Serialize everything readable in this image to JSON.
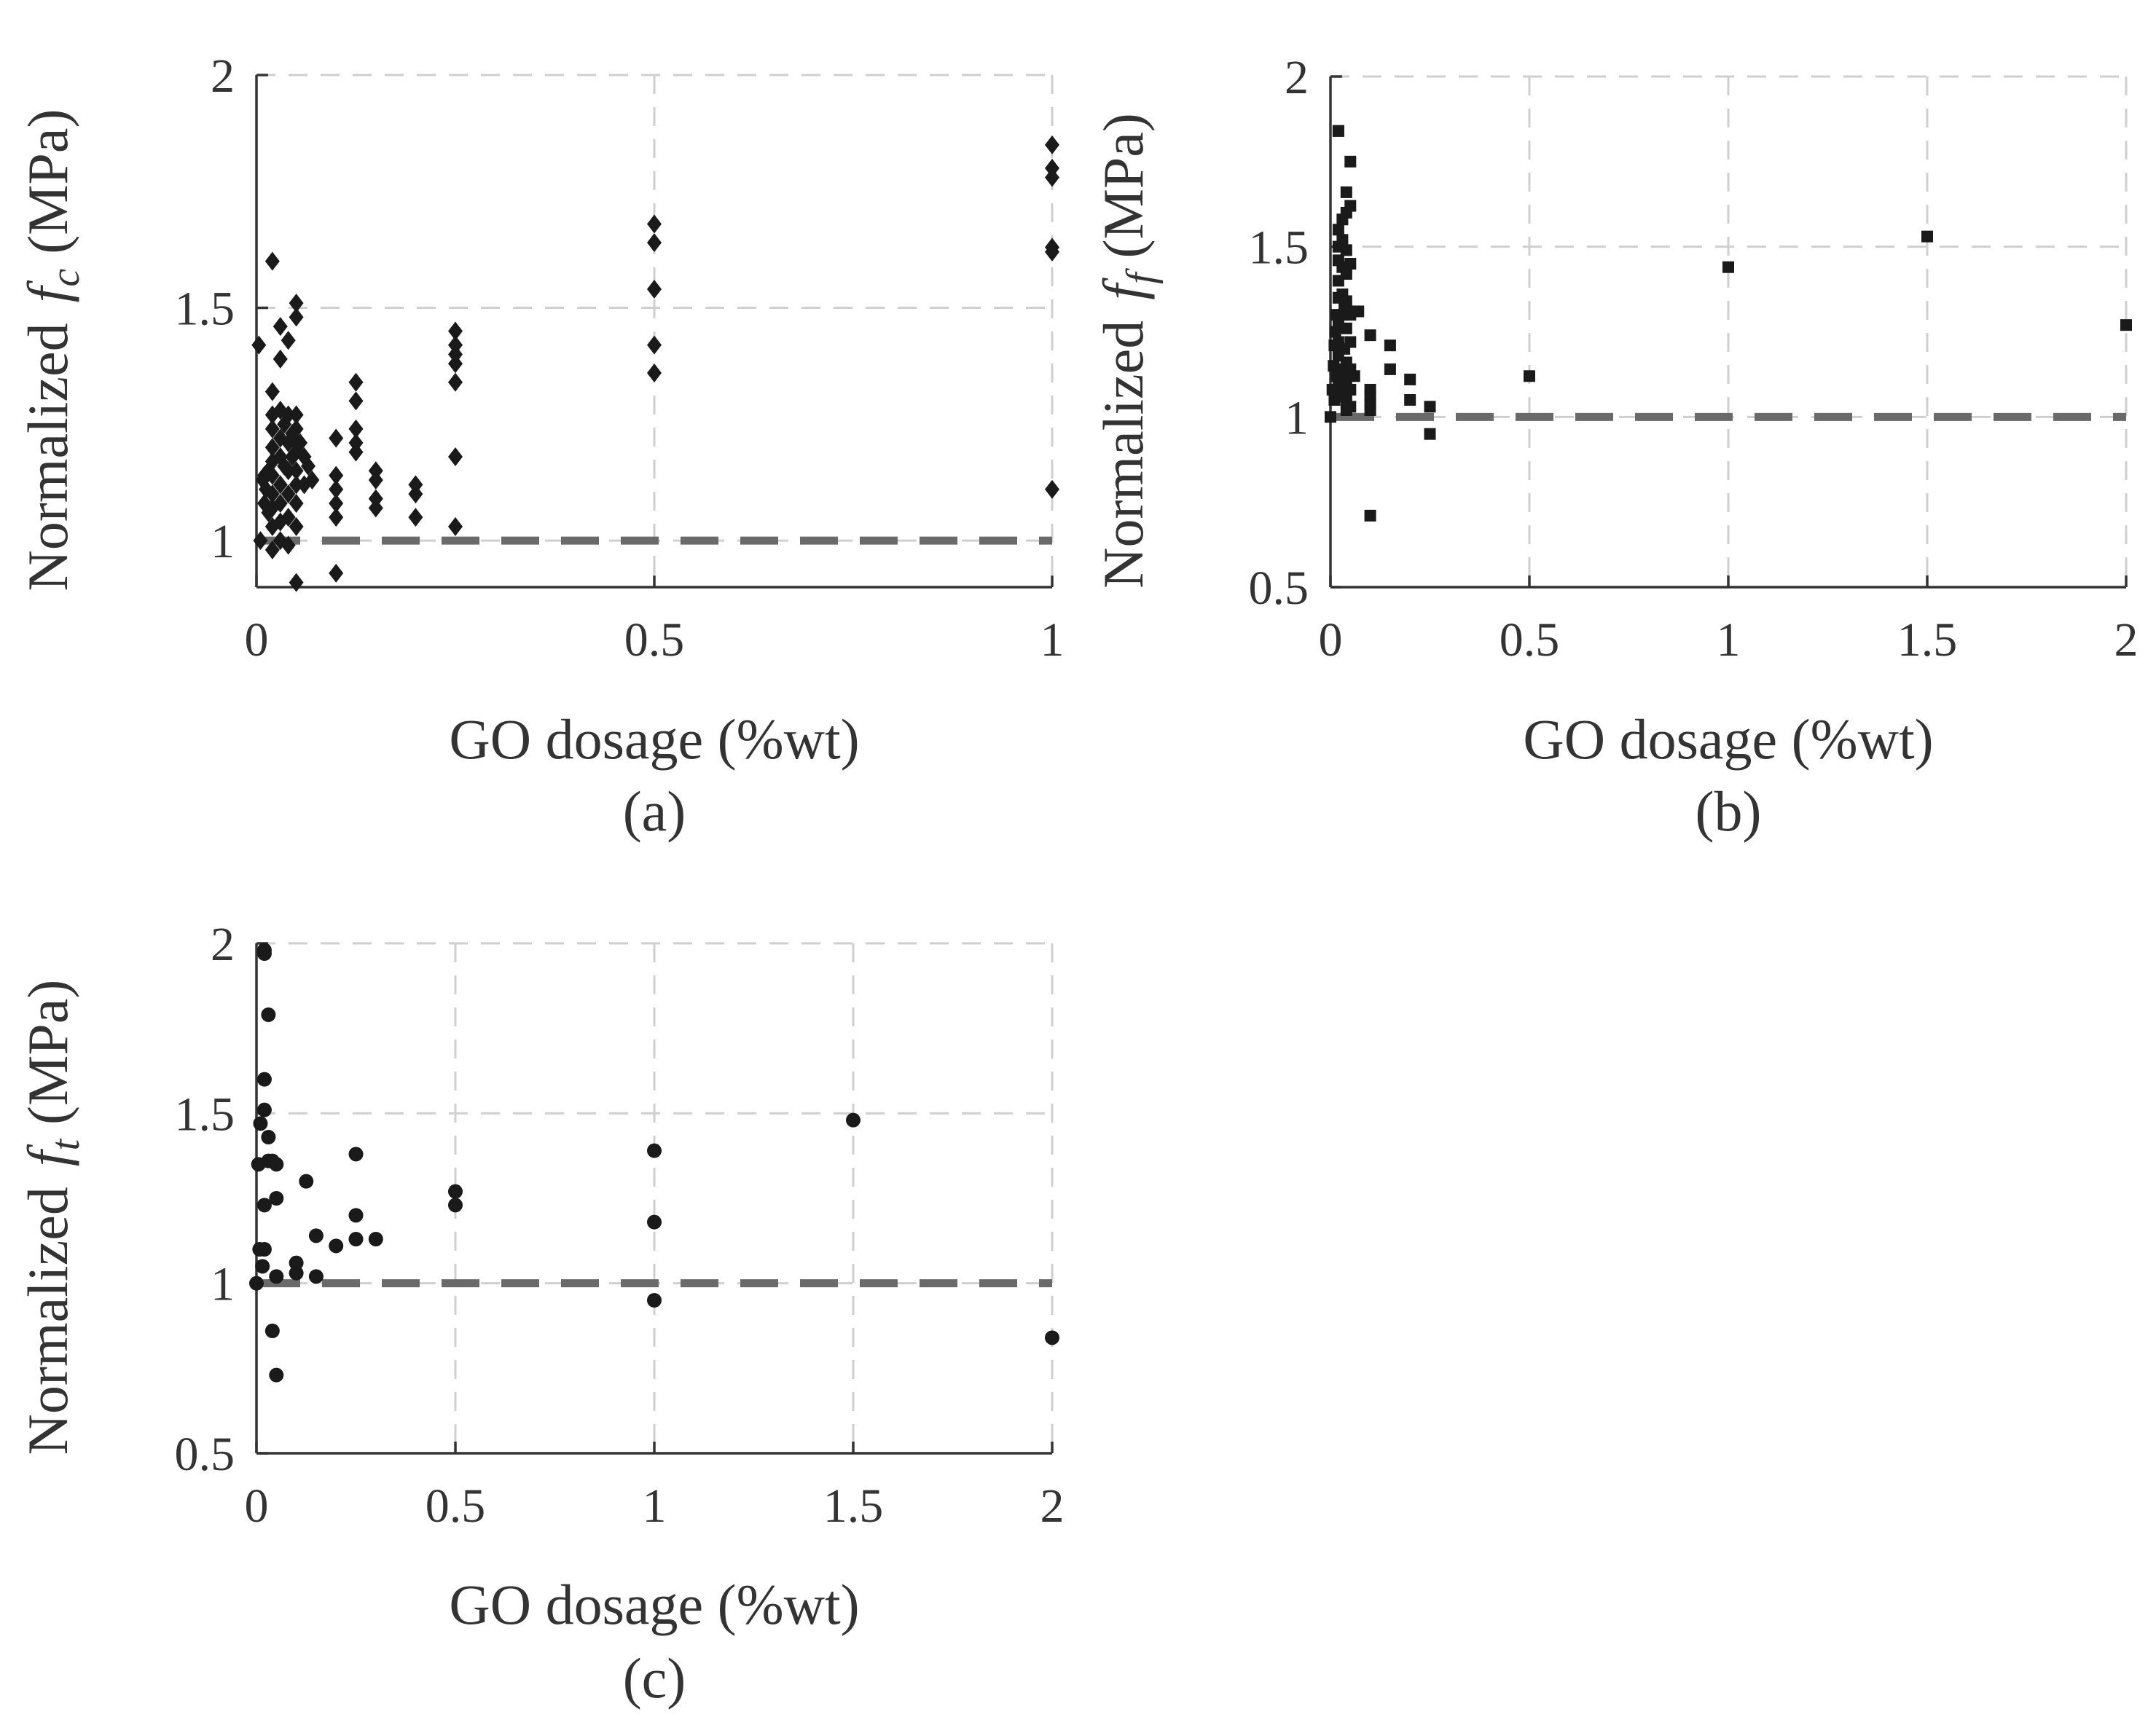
{
  "panels": [
    {
      "id": "a",
      "caption": "(a)",
      "ylabel_prefix": "Normalized",
      "ylabel_var": "f",
      "ylabel_sub": "c",
      "ylabel_unit": "(MPa)",
      "chart_data": {
        "type": "scatter",
        "marker": "diamond",
        "xlabel": "GO dosage (%wt)",
        "xlim": [
          0,
          1
        ],
        "ylim": [
          0.9,
          2
        ],
        "xticks": [
          0,
          0.5,
          1
        ],
        "xtick_labels": [
          "0",
          "0.5",
          "1"
        ],
        "yticks": [
          1,
          1.5,
          2
        ],
        "ytick_labels": [
          "1",
          "1.5",
          "2"
        ],
        "reference_y": 1,
        "points": [
          [
            0.003,
            1.42
          ],
          [
            0.005,
            1.0
          ],
          [
            0.008,
            1.13
          ],
          [
            0.01,
            1.08
          ],
          [
            0.01,
            1.14
          ],
          [
            0.012,
            1.11
          ],
          [
            0.015,
            1.06
          ],
          [
            0.015,
            1.15
          ],
          [
            0.02,
            1.6
          ],
          [
            0.02,
            1.32
          ],
          [
            0.02,
            1.27
          ],
          [
            0.02,
            1.24
          ],
          [
            0.02,
            1.2
          ],
          [
            0.02,
            1.17
          ],
          [
            0.02,
            1.14
          ],
          [
            0.02,
            1.1
          ],
          [
            0.02,
            1.07
          ],
          [
            0.02,
            1.03
          ],
          [
            0.02,
            0.98
          ],
          [
            0.03,
            1.46
          ],
          [
            0.03,
            1.39
          ],
          [
            0.03,
            1.28
          ],
          [
            0.03,
            1.22
          ],
          [
            0.03,
            1.18
          ],
          [
            0.03,
            1.12
          ],
          [
            0.03,
            1.08
          ],
          [
            0.03,
            1.04
          ],
          [
            0.03,
            1.0
          ],
          [
            0.035,
            1.25
          ],
          [
            0.035,
            1.16
          ],
          [
            0.04,
            1.43
          ],
          [
            0.04,
            1.27
          ],
          [
            0.04,
            1.21
          ],
          [
            0.04,
            1.15
          ],
          [
            0.04,
            1.1
          ],
          [
            0.04,
            1.05
          ],
          [
            0.04,
            0.99
          ],
          [
            0.045,
            1.23
          ],
          [
            0.045,
            1.18
          ],
          [
            0.05,
            1.51
          ],
          [
            0.05,
            1.48
          ],
          [
            0.05,
            1.27
          ],
          [
            0.05,
            1.24
          ],
          [
            0.05,
            1.21
          ],
          [
            0.05,
            1.19
          ],
          [
            0.05,
            1.15
          ],
          [
            0.05,
            1.12
          ],
          [
            0.05,
            1.08
          ],
          [
            0.05,
            1.03
          ],
          [
            0.05,
            0.91
          ],
          [
            0.055,
            1.21
          ],
          [
            0.06,
            1.18
          ],
          [
            0.06,
            1.12
          ],
          [
            0.065,
            1.16
          ],
          [
            0.07,
            1.13
          ],
          [
            0.1,
            1.22
          ],
          [
            0.1,
            1.14
          ],
          [
            0.1,
            1.11
          ],
          [
            0.1,
            1.08
          ],
          [
            0.1,
            1.05
          ],
          [
            0.1,
            0.93
          ],
          [
            0.125,
            1.34
          ],
          [
            0.125,
            1.3
          ],
          [
            0.125,
            1.24
          ],
          [
            0.125,
            1.21
          ],
          [
            0.125,
            1.19
          ],
          [
            0.15,
            1.15
          ],
          [
            0.15,
            1.13
          ],
          [
            0.15,
            1.09
          ],
          [
            0.15,
            1.07
          ],
          [
            0.2,
            1.12
          ],
          [
            0.2,
            1.1
          ],
          [
            0.2,
            1.05
          ],
          [
            0.25,
            1.45
          ],
          [
            0.25,
            1.42
          ],
          [
            0.25,
            1.4
          ],
          [
            0.25,
            1.38
          ],
          [
            0.25,
            1.34
          ],
          [
            0.25,
            1.18
          ],
          [
            0.25,
            1.03
          ],
          [
            0.5,
            1.68
          ],
          [
            0.5,
            1.64
          ],
          [
            0.5,
            1.54
          ],
          [
            0.5,
            1.42
          ],
          [
            0.5,
            1.36
          ],
          [
            1,
            1.85
          ],
          [
            1,
            1.8
          ],
          [
            1,
            1.78
          ],
          [
            1,
            1.63
          ],
          [
            1,
            1.62
          ],
          [
            1,
            1.11
          ]
        ]
      }
    },
    {
      "id": "b",
      "caption": "(b)",
      "ylabel_prefix": "Normalized",
      "ylabel_var": "f",
      "ylabel_sub": "f",
      "ylabel_unit": "(MPa)",
      "chart_data": {
        "type": "scatter",
        "marker": "square",
        "xlabel": "GO dosage (%wt)",
        "xlim": [
          0,
          2
        ],
        "ylim": [
          0.5,
          2
        ],
        "xticks": [
          0,
          0.5,
          1,
          1.5,
          2
        ],
        "xtick_labels": [
          "0",
          "0.5",
          "1",
          "1.5",
          "2"
        ],
        "yticks": [
          0.5,
          1,
          1.5,
          2
        ],
        "ytick_labels": [
          "0.5",
          "1",
          "1.5",
          "2"
        ],
        "reference_y": 1,
        "points": [
          [
            0,
            1.0
          ],
          [
            0.005,
            1.08
          ],
          [
            0.008,
            1.15
          ],
          [
            0.01,
            1.21
          ],
          [
            0.01,
            1.05
          ],
          [
            0.012,
            1.25
          ],
          [
            0.015,
            1.3
          ],
          [
            0.015,
            1.12
          ],
          [
            0.02,
            1.84
          ],
          [
            0.02,
            1.84
          ],
          [
            0.02,
            1.55
          ],
          [
            0.02,
            1.5
          ],
          [
            0.02,
            1.46
          ],
          [
            0.02,
            1.4
          ],
          [
            0.02,
            1.35
          ],
          [
            0.02,
            1.28
          ],
          [
            0.02,
            1.22
          ],
          [
            0.02,
            1.18
          ],
          [
            0.02,
            1.1
          ],
          [
            0.02,
            1.06
          ],
          [
            0.03,
            1.58
          ],
          [
            0.03,
            1.52
          ],
          [
            0.03,
            1.44
          ],
          [
            0.03,
            1.36
          ],
          [
            0.03,
            1.3
          ],
          [
            0.03,
            1.14
          ],
          [
            0.03,
            1.08
          ],
          [
            0.035,
            1.32
          ],
          [
            0.035,
            1.2
          ],
          [
            0.04,
            1.66
          ],
          [
            0.04,
            1.6
          ],
          [
            0.04,
            1.49
          ],
          [
            0.04,
            1.42
          ],
          [
            0.04,
            1.34
          ],
          [
            0.04,
            1.26
          ],
          [
            0.04,
            1.16
          ],
          [
            0.04,
            1.11
          ],
          [
            0.04,
            1.05
          ],
          [
            0.04,
            1.02
          ],
          [
            0.05,
            1.75
          ],
          [
            0.05,
            1.62
          ],
          [
            0.05,
            1.45
          ],
          [
            0.05,
            1.3
          ],
          [
            0.05,
            1.22
          ],
          [
            0.05,
            1.14
          ],
          [
            0.05,
            1.08
          ],
          [
            0.05,
            1.03
          ],
          [
            0.06,
            1.31
          ],
          [
            0.06,
            1.12
          ],
          [
            0.07,
            1.31
          ],
          [
            0.1,
            1.24
          ],
          [
            0.1,
            1.08
          ],
          [
            0.1,
            1.06
          ],
          [
            0.1,
            1.04
          ],
          [
            0.1,
            1.02
          ],
          [
            0.1,
            0.71
          ],
          [
            0.15,
            1.21
          ],
          [
            0.15,
            1.14
          ],
          [
            0.2,
            1.11
          ],
          [
            0.2,
            1.05
          ],
          [
            0.25,
            1.03
          ],
          [
            0.25,
            0.95
          ],
          [
            0.5,
            1.12
          ],
          [
            1,
            1.44
          ],
          [
            1.5,
            1.53
          ],
          [
            2,
            1.27
          ]
        ]
      }
    },
    {
      "id": "c",
      "caption": "(c)",
      "ylabel_prefix": "Normalized",
      "ylabel_var": "f",
      "ylabel_sub": "t",
      "ylabel_unit": "(MPa)",
      "chart_data": {
        "type": "scatter",
        "marker": "circle",
        "xlabel": "GO dosage (%wt)",
        "xlim": [
          0,
          2
        ],
        "ylim": [
          0.5,
          2
        ],
        "xticks": [
          0,
          0.5,
          1,
          1.5,
          2
        ],
        "xtick_labels": [
          "0",
          "0.5",
          "1",
          "1.5",
          "2"
        ],
        "yticks": [
          0.5,
          1,
          1.5,
          2
        ],
        "ytick_labels": [
          "0.5",
          "1",
          "1.5",
          "2"
        ],
        "reference_y": 1,
        "points": [
          [
            0,
            1.0
          ],
          [
            0.005,
            1.35
          ],
          [
            0.008,
            1.1
          ],
          [
            0.01,
            1.47
          ],
          [
            0.015,
            1.05
          ],
          [
            0.02,
            1.98
          ],
          [
            0.02,
            1.97
          ],
          [
            0.02,
            1.6
          ],
          [
            0.02,
            1.51
          ],
          [
            0.02,
            1.23
          ],
          [
            0.02,
            1.1
          ],
          [
            0.03,
            1.79
          ],
          [
            0.03,
            1.43
          ],
          [
            0.03,
            1.36
          ],
          [
            0.04,
            1.36
          ],
          [
            0.04,
            0.86
          ],
          [
            0.05,
            1.35
          ],
          [
            0.05,
            1.25
          ],
          [
            0.05,
            1.02
          ],
          [
            0.05,
            0.73
          ],
          [
            0.1,
            1.06
          ],
          [
            0.1,
            1.03
          ],
          [
            0.125,
            1.3
          ],
          [
            0.15,
            1.14
          ],
          [
            0.15,
            1.02
          ],
          [
            0.2,
            1.11
          ],
          [
            0.25,
            1.38
          ],
          [
            0.25,
            1.2
          ],
          [
            0.25,
            1.13
          ],
          [
            0.3,
            1.13
          ],
          [
            0.5,
            1.27
          ],
          [
            0.5,
            1.23
          ],
          [
            1,
            1.39
          ],
          [
            1,
            1.18
          ],
          [
            1,
            0.95
          ],
          [
            1.5,
            1.48
          ],
          [
            2,
            0.84
          ]
        ]
      }
    }
  ]
}
